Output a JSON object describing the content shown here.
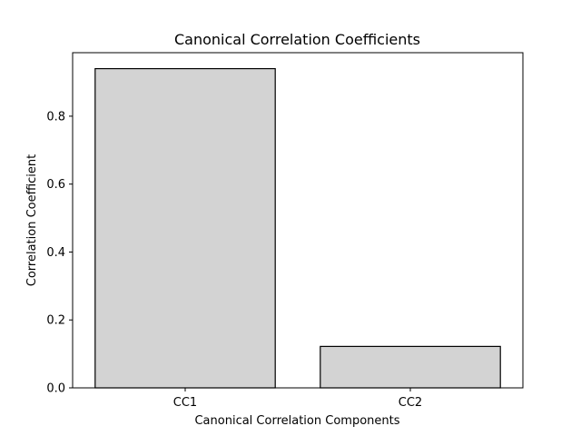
{
  "chart_data": {
    "type": "bar",
    "title": "Canonical Correlation Coefficients",
    "xlabel": "Canonical Correlation Components",
    "ylabel": "Correlation Coefficient",
    "categories": [
      "CC1",
      "CC2"
    ],
    "values": [
      0.94,
      0.122
    ],
    "ylim": [
      0,
      0.987
    ],
    "yticks": [
      {
        "value": 0.0,
        "label": "0.0"
      },
      {
        "value": 0.2,
        "label": "0.2"
      },
      {
        "value": 0.4,
        "label": "0.4"
      },
      {
        "value": 0.6,
        "label": "0.6"
      },
      {
        "value": 0.8,
        "label": "0.8"
      }
    ],
    "bar_color": "#d3d3d3",
    "edge_color": "#000000",
    "grid": false,
    "legend": "none"
  }
}
